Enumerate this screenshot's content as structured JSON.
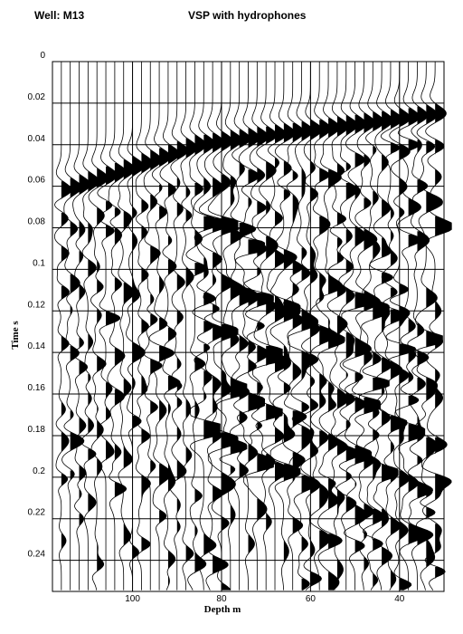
{
  "header": {
    "well_label": "Well: M13",
    "title": "VSP with hydrophones"
  },
  "chart_data": {
    "type": "seismic_wiggle",
    "title": "VSP with hydrophones",
    "subtitle": "Well: M13",
    "xlabel": "Depth m",
    "ylabel": "Time s",
    "x_reversed": true,
    "xlim": [
      118,
      30
    ],
    "ylim": [
      0,
      0.255
    ],
    "x_ticks": [
      100,
      80,
      60,
      40
    ],
    "y_ticks": [
      0,
      0.02,
      0.04,
      0.06,
      0.08,
      0.1,
      0.12,
      0.14,
      0.16,
      0.18,
      0.2,
      0.22,
      0.24
    ],
    "x_tick_labels": [
      "100",
      "80",
      "60",
      "40"
    ],
    "y_tick_labels": [
      "0",
      "0.02",
      "0.04",
      "0.06",
      "0.08",
      "0.1",
      "0.12",
      "0.14",
      "0.16",
      "0.18",
      "0.2",
      "0.22",
      "0.24"
    ],
    "trace_depth_start": 116,
    "trace_depth_end": 32,
    "trace_count": 43,
    "first_arrival": {
      "depth": [
        116,
        86,
        32
      ],
      "time": [
        0.062,
        0.04,
        0.025
      ]
    },
    "fill_color": "#000000",
    "grid": true
  }
}
